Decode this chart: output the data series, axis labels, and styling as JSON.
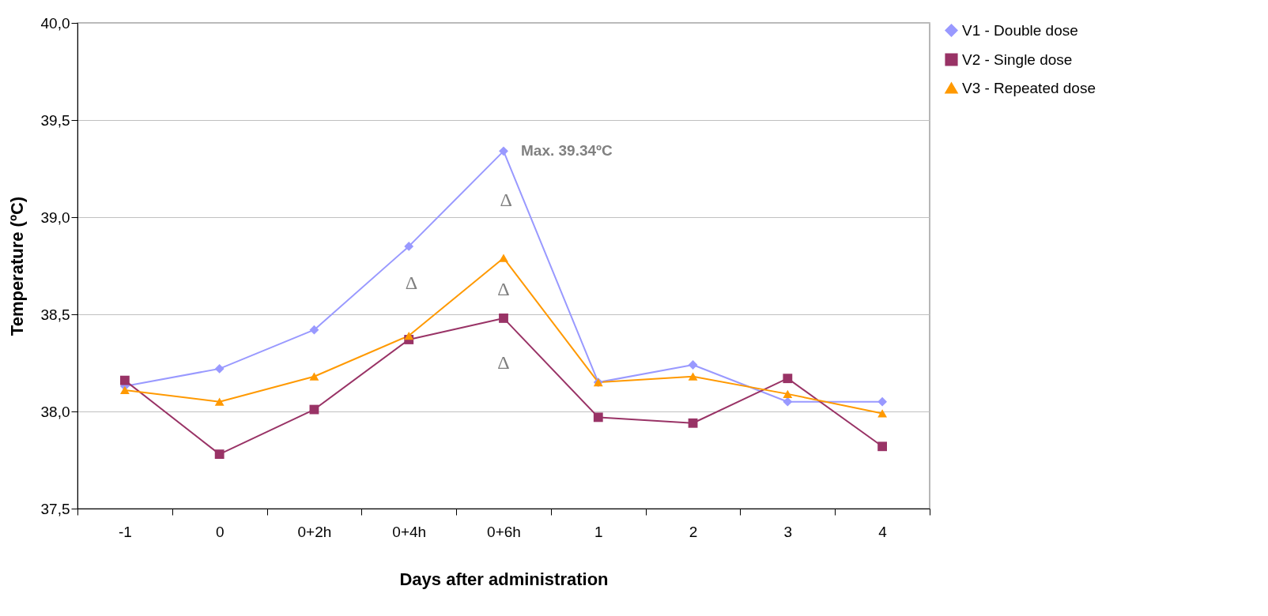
{
  "chart_data": {
    "type": "line",
    "xlabel": "Days after administration",
    "ylabel": "Temperature (ºC)",
    "categories": [
      "-1",
      "0",
      "0+2h",
      "0+4h",
      "0+6h",
      "1",
      "2",
      "3",
      "4"
    ],
    "series": [
      {
        "name": "V1 - Double dose",
        "color": "#9999ff",
        "marker": "diamond",
        "values": [
          38.13,
          38.22,
          38.42,
          38.85,
          39.34,
          38.15,
          38.24,
          38.05,
          38.05
        ]
      },
      {
        "name": "V2 - Single dose",
        "color": "#993366",
        "marker": "square",
        "values": [
          38.16,
          37.78,
          38.01,
          38.37,
          38.48,
          37.97,
          37.94,
          38.17,
          37.82
        ]
      },
      {
        "name": "V3 - Repeated dose",
        "color": "#ff9900",
        "marker": "triangle",
        "values": [
          38.11,
          38.05,
          38.18,
          38.39,
          38.79,
          38.15,
          38.18,
          38.09,
          37.99
        ]
      }
    ],
    "ylim": [
      37.5,
      40
    ],
    "yticks": [
      {
        "value": 37.5,
        "label": "37,5"
      },
      {
        "value": 38,
        "label": "38,0"
      },
      {
        "value": 38.5,
        "label": "38,5"
      },
      {
        "value": 39,
        "label": "39,0"
      },
      {
        "value": 39.5,
        "label": "39,5"
      },
      {
        "value": 40,
        "label": "40,0"
      }
    ],
    "grid": "y",
    "legend": "right",
    "annotations": [
      {
        "text": "Max. 39.34ºC",
        "x": "0+6h",
        "y": 39.34
      },
      "Δ",
      "Δ",
      "Δ",
      "Δ"
    ]
  }
}
